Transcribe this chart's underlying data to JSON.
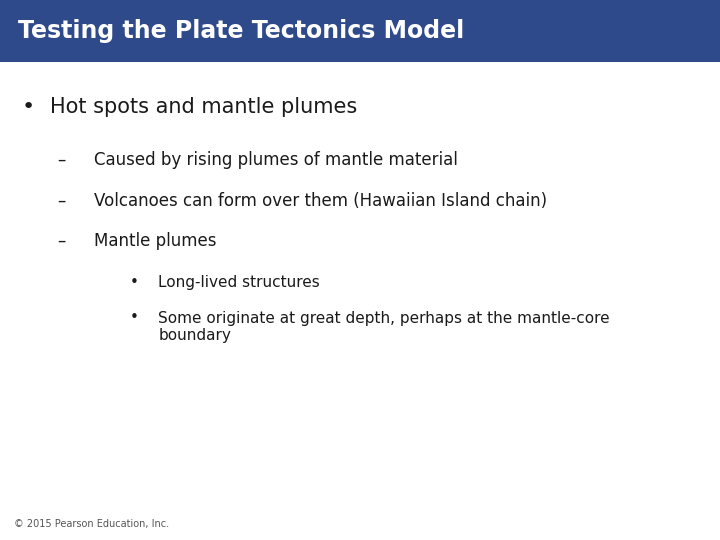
{
  "title": "Testing the Plate Tectonics Model",
  "title_bg_color": "#2E4A8B",
  "title_text_color": "#FFFFFF",
  "bg_color": "#FFFFFF",
  "bullet1": "Hot spots and mantle plumes",
  "sub1": "Caused by rising plumes of mantle material",
  "sub2": "Volcanoes can form over them (Hawaiian Island chain)",
  "sub3": "Mantle plumes",
  "subsub1": "Long-lived structures",
  "subsub2": "Some originate at great depth, perhaps at the mantle-core\nboundary",
  "footer": "© 2015 Pearson Education, Inc.",
  "title_fontsize": 17,
  "bullet1_fontsize": 15,
  "sub_fontsize": 12,
  "subsub_fontsize": 11,
  "footer_fontsize": 7,
  "text_color": "#1a1a1a",
  "title_bar_height": 0.115
}
